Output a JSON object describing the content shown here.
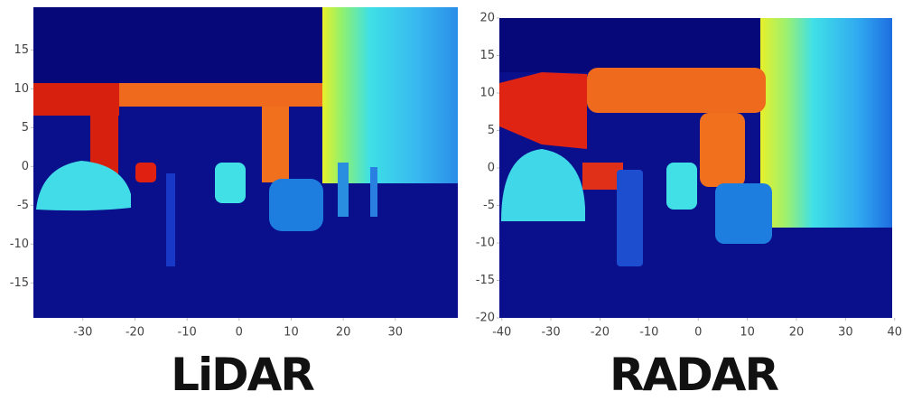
{
  "chart_data": [
    {
      "type": "image",
      "title": "LiDAR",
      "xlim": [
        -39.5,
        42
      ],
      "xticks": [
        -30,
        -20,
        -10,
        0,
        10,
        20,
        30
      ],
      "ylim": [
        -19.5,
        20.5
      ],
      "yticks": [
        15,
        10,
        5,
        0,
        -5,
        -10,
        -15
      ]
    },
    {
      "type": "image",
      "title": "RADAR",
      "xlim": [
        -40.5,
        39.5
      ],
      "xticks": [
        -40,
        -30,
        -20,
        -10,
        0,
        10,
        20,
        30,
        40
      ],
      "ylim": [
        -20,
        20
      ],
      "yticks": [
        20,
        15,
        10,
        5,
        0,
        -5,
        -10,
        -15,
        -20
      ]
    }
  ]
}
